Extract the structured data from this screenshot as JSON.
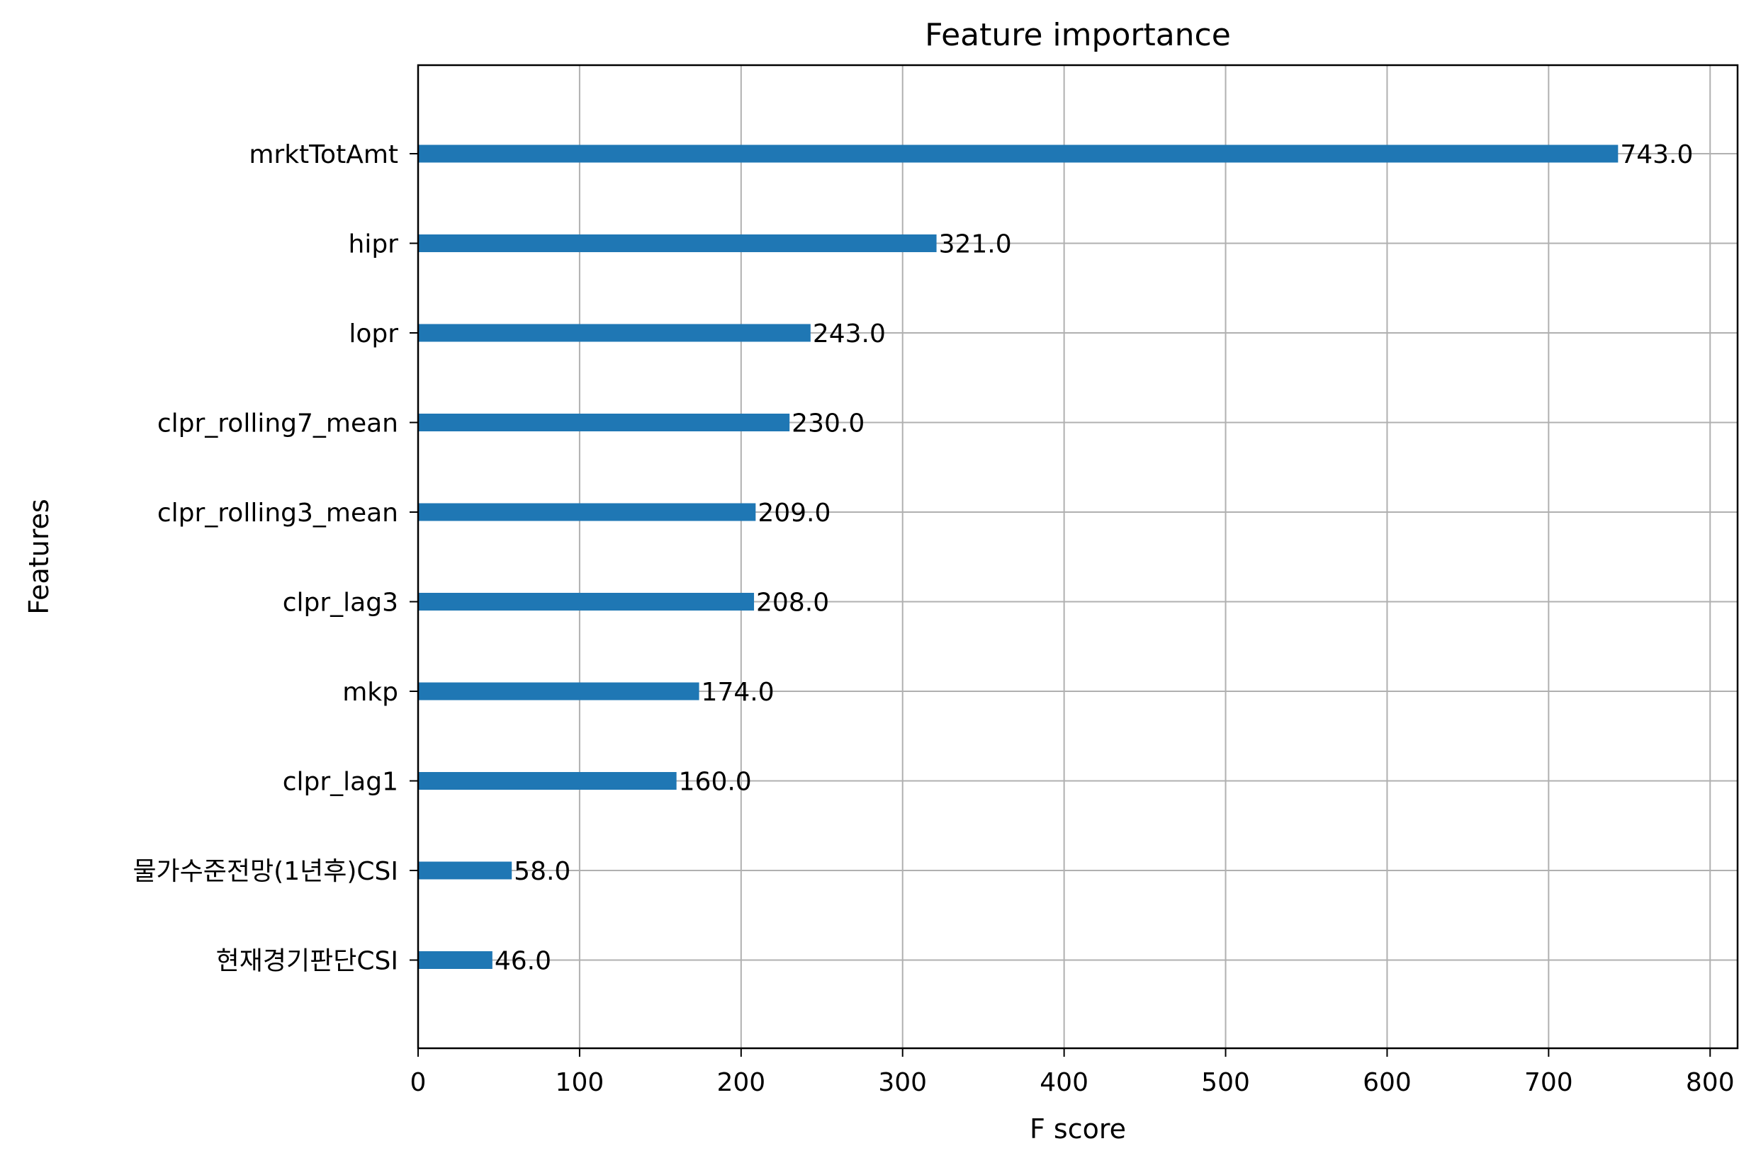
{
  "chart_data": {
    "type": "bar",
    "orientation": "horizontal",
    "title": "Feature importance",
    "xlabel": "F score",
    "ylabel": "Features",
    "categories": [
      "mrktTotAmt",
      "hipr",
      "lopr",
      "clpr_rolling7_mean",
      "clpr_rolling3_mean",
      "clpr_lag3",
      "mkp",
      "clpr_lag1",
      "물가수준전망(1년후)CSI",
      "현재경기판단CSI"
    ],
    "values": [
      743.0,
      321.0,
      243.0,
      230.0,
      209.0,
      208.0,
      174.0,
      160.0,
      58.0,
      46.0
    ],
    "data_labels": [
      "743.0",
      "321.0",
      "243.0",
      "230.0",
      "209.0",
      "208.0",
      "174.0",
      "160.0",
      "58.0",
      "46.0"
    ],
    "xlim": [
      0,
      817
    ],
    "xticks": [
      0,
      100,
      200,
      300,
      400,
      500,
      600,
      700,
      800
    ],
    "grid": true,
    "bar_color": "#1f77b4",
    "grid_color": "#b0b0b0"
  }
}
